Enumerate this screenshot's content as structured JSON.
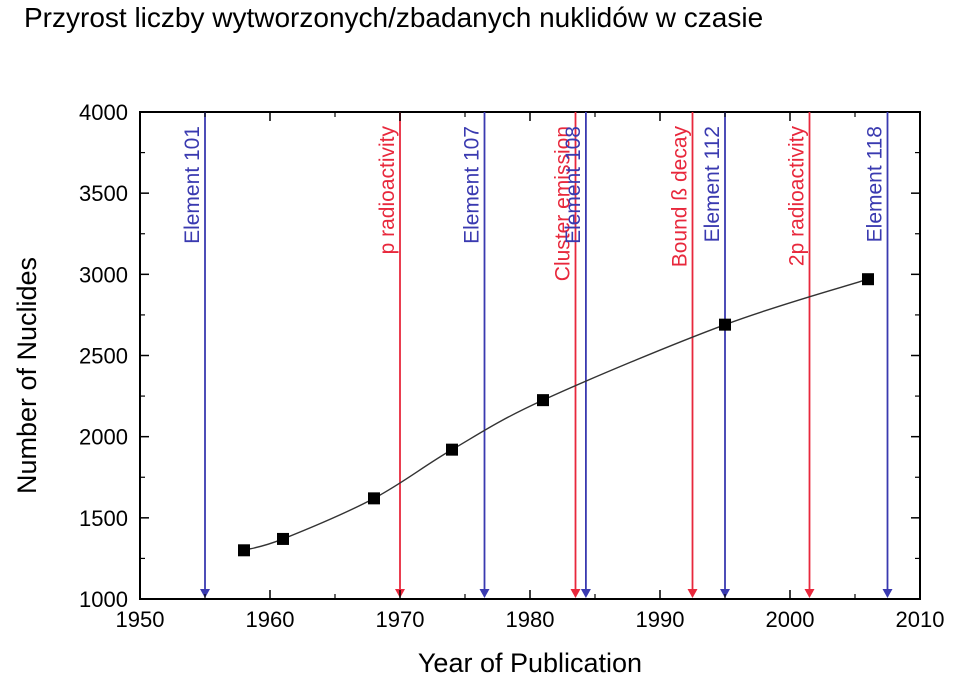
{
  "page": {
    "title": "Przyrost liczby wytworzonych/zbadanych nuklidów w czasie"
  },
  "chart_data": {
    "type": "line",
    "title": "",
    "xlabel": "Year of Publication",
    "ylabel": "Number of Nuclides",
    "xlim": [
      1950,
      2010
    ],
    "ylim": [
      1000,
      4000
    ],
    "x_ticks": [
      1950,
      1960,
      1970,
      1980,
      1990,
      2000,
      2010
    ],
    "y_ticks": [
      1000,
      1500,
      2000,
      2500,
      3000,
      3500,
      4000
    ],
    "grid": false,
    "series": [
      {
        "points": [
          {
            "x": 1958,
            "y": 1300
          },
          {
            "x": 1961,
            "y": 1370
          },
          {
            "x": 1968,
            "y": 1620
          },
          {
            "x": 1974,
            "y": 1920
          },
          {
            "x": 1981,
            "y": 2225
          },
          {
            "x": 1995,
            "y": 2690
          },
          {
            "x": 2006,
            "y": 2970
          }
        ],
        "color": "#000000"
      }
    ],
    "annotations": [
      {
        "label": "Element 101",
        "x": 1955,
        "color": "#3a3ab0"
      },
      {
        "label": "p radioactivity",
        "x": 1970,
        "color": "#e8283c"
      },
      {
        "label": "Element 107",
        "x": 1976.5,
        "color": "#3a3ab0"
      },
      {
        "label": "Cluster emission",
        "x": 1983.5,
        "color": "#e8283c"
      },
      {
        "label": "Element 108",
        "x": 1984.3,
        "color": "#3a3ab0"
      },
      {
        "label": "Bound ß decay",
        "x": 1992.5,
        "color": "#e8283c"
      },
      {
        "label": "Element 112",
        "x": 1995,
        "color": "#3a3ab0"
      },
      {
        "label": "2p radioactivity",
        "x": 2001.5,
        "color": "#e8283c"
      },
      {
        "label": "Element 118",
        "x": 2007.5,
        "color": "#3a3ab0"
      }
    ]
  }
}
